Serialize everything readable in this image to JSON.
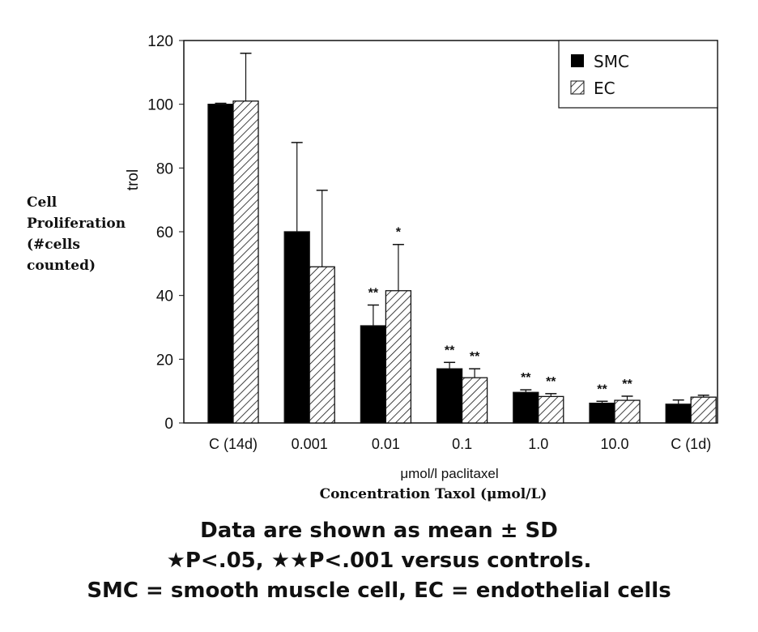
{
  "chart_data": {
    "type": "bar",
    "categories": [
      "C (14d)",
      "0.001",
      "0.01",
      "0.1",
      "1.0",
      "10.0",
      "C (1d)"
    ],
    "series": [
      {
        "name": "SMC",
        "fill": "solid",
        "color": "#000000",
        "values": [
          100,
          60,
          30.5,
          17,
          9.6,
          6.2,
          5.9
        ],
        "error_upper": [
          100.3,
          88,
          37,
          19,
          10.4,
          6.8,
          7.2
        ],
        "significance": [
          "",
          "",
          "**",
          "**",
          "**",
          "**",
          ""
        ]
      },
      {
        "name": "EC",
        "fill": "hatched",
        "color": "#000000",
        "values": [
          101,
          49,
          41.5,
          14.2,
          8.3,
          7.1,
          8.1
        ],
        "error_upper": [
          116,
          73,
          56,
          17,
          9.2,
          8.4,
          8.7
        ],
        "significance": [
          "",
          "",
          "*",
          "**",
          "**",
          "**",
          ""
        ]
      }
    ],
    "ylim": [
      0,
      120
    ],
    "yticks": [
      0,
      20,
      40,
      60,
      80,
      100,
      120
    ],
    "ylabel_fragment": "trol",
    "ylabel_lines": [
      "Cell",
      "Proliferation",
      "(#cells",
      "counted)"
    ],
    "xlabel": "μmol/l paclitaxel",
    "xlabel2": "Concentration Taxol (μmol/L)",
    "legend_position": "top-right",
    "grid": false
  },
  "footnotes": [
    "Data are shown as mean ± SD",
    "★P<.05, ★★P<.001 versus controls.",
    "SMC = smooth muscle cell, EC = endothelial cells"
  ]
}
